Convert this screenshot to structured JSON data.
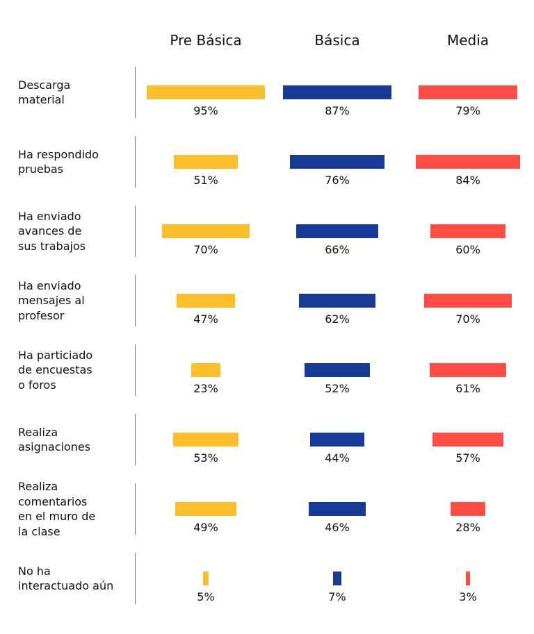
{
  "chart_data": {
    "type": "bar",
    "series": [
      {
        "name": "Pre Básica",
        "color": "#FDBE2E",
        "values": [
          95,
          51,
          70,
          47,
          23,
          53,
          49,
          5
        ],
        "labels": [
          "95%",
          "51%",
          "70%",
          "47%",
          "23%",
          "53%",
          "49%",
          "5%"
        ]
      },
      {
        "name": "Básica",
        "color": "#173A96",
        "values": [
          87,
          76,
          66,
          62,
          52,
          44,
          46,
          7
        ],
        "labels": [
          "87%",
          "76%",
          "66%",
          "62%",
          "52%",
          "44%",
          "46%",
          "7%"
        ]
      },
      {
        "name": "Media",
        "color": "#FF4D45",
        "values": [
          79,
          84,
          60,
          70,
          61,
          57,
          28,
          3
        ],
        "labels": [
          "79%",
          "84%",
          "60%",
          "70%",
          "61%",
          "57%",
          "28%",
          "3%"
        ]
      }
    ],
    "categories": [
      [
        "Descarga",
        "material"
      ],
      [
        "Ha respondido",
        "pruebas"
      ],
      [
        "Ha enviado",
        "avances de",
        "sus trabajos"
      ],
      [
        "Ha enviado",
        "mensajes al",
        "profesor"
      ],
      [
        "Ha particiado",
        "de encuestas",
        "o foros"
      ],
      [
        "Realiza",
        "asignaciones"
      ],
      [
        "Realiza",
        "comentarios",
        "en el muro de",
        "la clase"
      ],
      [
        "No ha",
        "interactuado aún"
      ]
    ],
    "unit": "%",
    "ylim": [
      0,
      100
    ],
    "legend": "top",
    "grid": false
  }
}
